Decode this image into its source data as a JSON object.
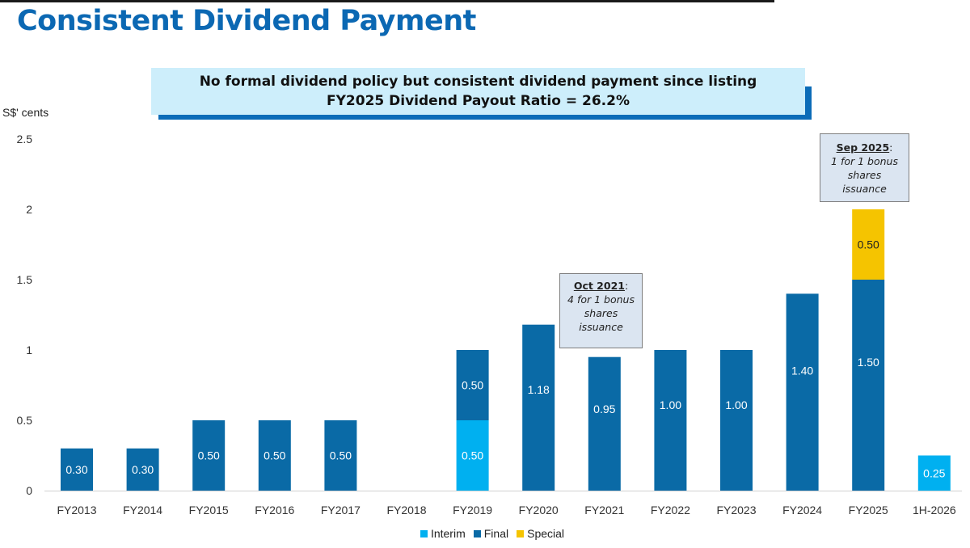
{
  "title": "Consistent Dividend Payment",
  "banner": {
    "line1": "No formal dividend policy but consistent dividend payment since listing",
    "line2": "FY2025 Dividend Payout Ratio = 26.2%"
  },
  "callouts": [
    {
      "heading": "Oct 2021",
      "body_lines": [
        "4 for 1 bonus",
        "shares",
        "issuance"
      ]
    },
    {
      "heading": "Sep 2025",
      "body_lines": [
        "1 for 1 bonus",
        "shares",
        "issuance"
      ]
    }
  ],
  "colors": {
    "title": "#0b68b3",
    "banner_bg": "#cdeefb",
    "banner_accent": "#0b6cb8",
    "interim": "#00b0f0",
    "final": "#0a6aa6",
    "special": "#f5c400",
    "callout_bg": "#dbe5f1"
  },
  "chart_data": {
    "type": "bar",
    "stacked": true,
    "ylabel": "S$' cents",
    "ylim": [
      0,
      2.5
    ],
    "yticks": [
      "0",
      "0.5",
      "1",
      "1.5",
      "2",
      "2.5"
    ],
    "categories": [
      "FY2013",
      "FY2014",
      "FY2015",
      "FY2016",
      "FY2017",
      "FY2018",
      "FY2019",
      "FY2020",
      "FY2021",
      "FY2022",
      "FY2023",
      "FY2024",
      "FY2025",
      "1H-2026"
    ],
    "series": [
      {
        "name": "Interim",
        "values": [
          0,
          0,
          0,
          0,
          0,
          0,
          0.5,
          0,
          0,
          0,
          0,
          0,
          0,
          0.25
        ],
        "labels": [
          "",
          "",
          "",
          "",
          "",
          "",
          "0.50",
          "",
          "",
          "",
          "",
          "",
          "",
          "0.25"
        ]
      },
      {
        "name": "Final",
        "values": [
          0.3,
          0.3,
          0.5,
          0.5,
          0.5,
          0,
          0.5,
          1.18,
          0.95,
          1.0,
          1.0,
          1.4,
          1.5,
          0
        ],
        "labels": [
          "0.30",
          "0.30",
          "0.50",
          "0.50",
          "0.50",
          "",
          "0.50",
          "1.18",
          "0.95",
          "1.00",
          "1.00",
          "1.40",
          "1.50",
          ""
        ]
      },
      {
        "name": "Special",
        "values": [
          0,
          0,
          0,
          0,
          0,
          0,
          0,
          0,
          0,
          0,
          0,
          0,
          0.5,
          0
        ],
        "labels": [
          "",
          "",
          "",
          "",
          "",
          "",
          "",
          "",
          "",
          "",
          "",
          "",
          "0.50",
          ""
        ]
      }
    ],
    "legend_position": "bottom"
  }
}
